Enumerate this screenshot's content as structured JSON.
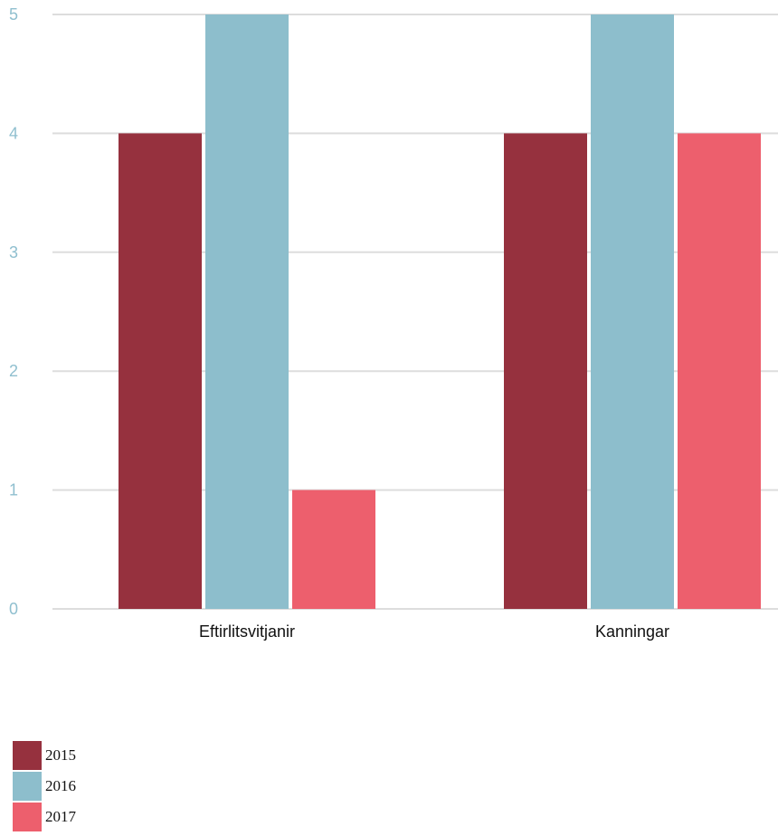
{
  "chart_data": {
    "type": "bar",
    "title": "",
    "xlabel": "",
    "ylabel": "",
    "categories": [
      "Eftirlitsvitjanir",
      "Kanningar"
    ],
    "series": [
      {
        "name": "2015",
        "values": [
          4,
          4
        ],
        "color": "#96313e"
      },
      {
        "name": "2016",
        "values": [
          5,
          5
        ],
        "color": "#8dbecc"
      },
      {
        "name": "2017",
        "values": [
          1,
          4
        ],
        "color": "#ed5f6d"
      }
    ],
    "ylim": [
      0,
      5
    ],
    "yticks": [
      "0",
      "1",
      "2",
      "3",
      "4",
      "5"
    ],
    "grid": true,
    "legend_position": "bottom-left"
  }
}
